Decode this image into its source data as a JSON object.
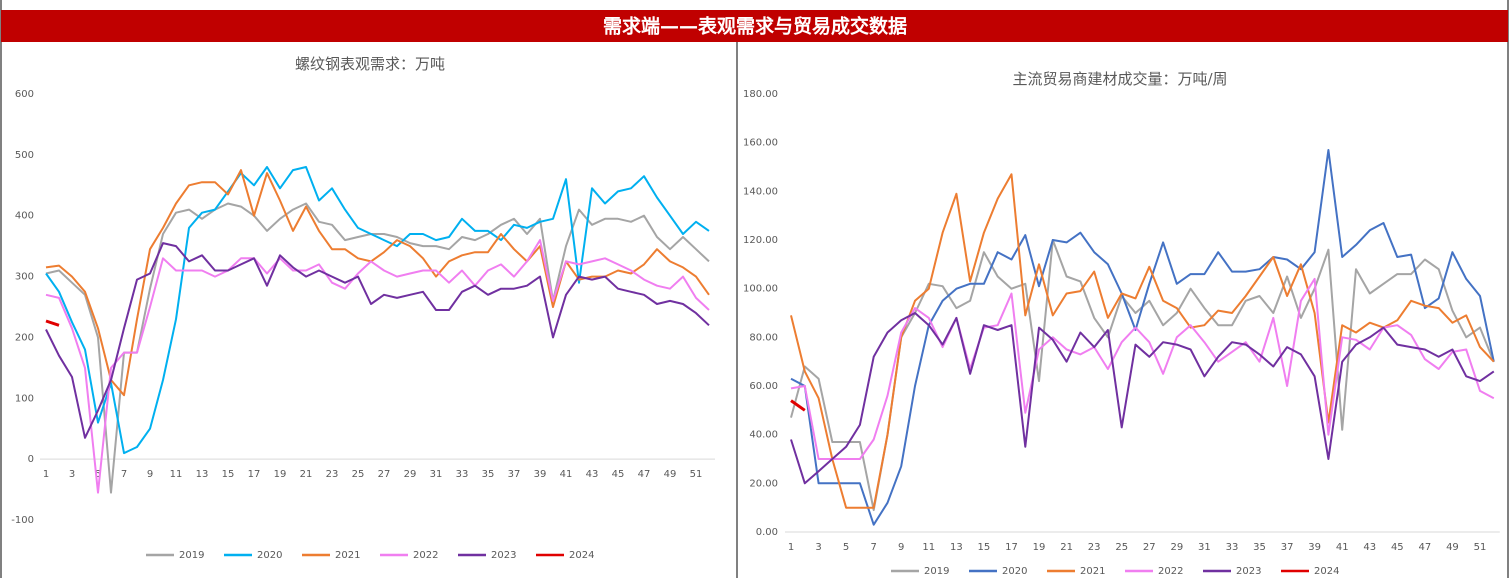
{
  "header": {
    "title": "需求端——表观需求与贸易成交数据"
  },
  "chart_data": [
    {
      "type": "line",
      "title": "螺纹钢表观需求：万吨",
      "categories": [
        "1",
        null,
        "3",
        null,
        "5",
        null,
        "7",
        null,
        "9",
        null,
        "11",
        null,
        "13",
        null,
        "15",
        null,
        "17",
        null,
        "19",
        null,
        "21",
        null,
        "23",
        null,
        "25",
        null,
        "27",
        null,
        "29",
        null,
        "31",
        null,
        "33",
        null,
        "35",
        null,
        "37",
        null,
        "39",
        null,
        "41",
        null,
        "43",
        null,
        "45",
        null,
        "47",
        null,
        "49",
        null,
        "51",
        null
      ],
      "ylim": [
        -100,
        600
      ],
      "yticks": [
        -100,
        0,
        100,
        200,
        300,
        400,
        500,
        600
      ],
      "grid": false,
      "legend": "bottom",
      "series": [
        {
          "name": "2019",
          "color": "#a5a5a5",
          "values": [
            305,
            310,
            290,
            270,
            200,
            -55,
            175,
            175,
            280,
            370,
            405,
            410,
            395,
            410,
            420,
            415,
            400,
            375,
            395,
            410,
            420,
            390,
            385,
            360,
            365,
            370,
            370,
            365,
            355,
            350,
            350,
            345,
            365,
            360,
            370,
            385,
            395,
            370,
            395,
            260,
            350,
            410,
            385,
            395,
            395,
            390,
            400,
            365,
            345,
            365,
            345,
            325
          ]
        },
        {
          "name": "2020",
          "color": "#00b0f0",
          "values": [
            305,
            275,
            225,
            180,
            60,
            125,
            10,
            20,
            50,
            130,
            230,
            380,
            405,
            410,
            440,
            470,
            450,
            480,
            445,
            475,
            480,
            425,
            445,
            410,
            380,
            370,
            360,
            350,
            370,
            370,
            360,
            365,
            395,
            375,
            375,
            360,
            385,
            380,
            390,
            395,
            460,
            290,
            445,
            420,
            440,
            445,
            465,
            430,
            400,
            370,
            390,
            375
          ]
        },
        {
          "name": "2021",
          "color": "#ed7d31",
          "values": [
            315,
            318,
            300,
            275,
            215,
            130,
            105,
            230,
            345,
            380,
            420,
            450,
            455,
            455,
            435,
            475,
            400,
            470,
            425,
            375,
            415,
            375,
            345,
            345,
            330,
            325,
            340,
            360,
            350,
            330,
            300,
            325,
            335,
            340,
            340,
            370,
            345,
            325,
            350,
            250,
            325,
            295,
            300,
            300,
            310,
            305,
            320,
            345,
            325,
            315,
            300,
            270
          ]
        },
        {
          "name": "2022",
          "color": "#f07ef0",
          "values": [
            270,
            265,
            215,
            150,
            -55,
            150,
            175,
            175,
            250,
            330,
            310,
            310,
            310,
            300,
            310,
            330,
            330,
            305,
            330,
            310,
            310,
            320,
            290,
            280,
            305,
            325,
            310,
            300,
            305,
            310,
            310,
            290,
            310,
            285,
            310,
            320,
            300,
            325,
            360,
            260,
            325,
            320,
            325,
            330,
            320,
            310,
            295,
            285,
            280,
            300,
            265,
            245
          ]
        },
        {
          "name": "2023",
          "color": "#7030a0",
          "values": [
            213,
            170,
            135,
            35,
            80,
            130,
            215,
            295,
            305,
            355,
            350,
            325,
            335,
            310,
            310,
            320,
            330,
            285,
            335,
            315,
            300,
            310,
            300,
            290,
            300,
            255,
            270,
            265,
            270,
            275,
            245,
            245,
            275,
            285,
            270,
            280,
            280,
            285,
            300,
            200,
            270,
            300,
            295,
            300,
            280,
            275,
            270,
            255,
            260,
            255,
            240,
            220
          ]
        },
        {
          "name": "2024",
          "color": "#e00000",
          "values": [
            227,
            220,
            null,
            null,
            null,
            null,
            null,
            null,
            null,
            null,
            null,
            null,
            null,
            null,
            null,
            null,
            null,
            null,
            null,
            null,
            null,
            null,
            null,
            null,
            null,
            null,
            null,
            null,
            null,
            null,
            null,
            null,
            null,
            null,
            null,
            null,
            null,
            null,
            null,
            null,
            null,
            null,
            null,
            null,
            null,
            null,
            null,
            null,
            null,
            null,
            null,
            null
          ]
        }
      ]
    },
    {
      "type": "line",
      "title": "主流贸易商建材成交量：万吨/周",
      "categories": [
        "1",
        null,
        "3",
        null,
        "5",
        null,
        "7",
        null,
        "9",
        null,
        "11",
        null,
        "13",
        null,
        "15",
        null,
        "17",
        null,
        "19",
        null,
        "21",
        null,
        "23",
        null,
        "25",
        null,
        "27",
        null,
        "29",
        null,
        "31",
        null,
        "33",
        null,
        "35",
        null,
        "37",
        null,
        "39",
        null,
        "41",
        null,
        "43",
        null,
        "45",
        null,
        "47",
        null,
        "49",
        null,
        "51",
        null
      ],
      "ylim": [
        0,
        180
      ],
      "yticks": [
        {
          "value": 0,
          "label": "0.00"
        },
        {
          "value": 20,
          "label": "20.00"
        },
        {
          "value": 40,
          "label": "40.00"
        },
        {
          "value": 60,
          "label": "60.00"
        },
        {
          "value": 80,
          "label": "80.00"
        },
        {
          "value": 100,
          "label": "100.00"
        },
        {
          "value": 120,
          "label": "120.00"
        },
        {
          "value": 140,
          "label": "140.00"
        },
        {
          "value": 160,
          "label": "160.00"
        },
        {
          "value": 180,
          "label": "180.00"
        }
      ],
      "grid": false,
      "legend": "bottom",
      "series": [
        {
          "name": "2019",
          "color": "#a5a5a5",
          "values": [
            47,
            68,
            63,
            37,
            37,
            37,
            9,
            40,
            80,
            90,
            102,
            101,
            92,
            95,
            115,
            105,
            100,
            102,
            62,
            120,
            105,
            103,
            88,
            80,
            97,
            90,
            95,
            85,
            90,
            100,
            92,
            85,
            85,
            95,
            97,
            90,
            105,
            88,
            100,
            116,
            42,
            108,
            98,
            102,
            106,
            106,
            112,
            108,
            91,
            80,
            84,
            70
          ]
        },
        {
          "name": "2020",
          "color": "#4472c4",
          "values": [
            63,
            60,
            20,
            20,
            20,
            20,
            3,
            12,
            27,
            60,
            85,
            95,
            100,
            102,
            102,
            115,
            112,
            122,
            101,
            120,
            119,
            123,
            115,
            110,
            98,
            83,
            102,
            119,
            102,
            106,
            106,
            115,
            107,
            107,
            108,
            113,
            112,
            108,
            115,
            157,
            113,
            118,
            124,
            127,
            113,
            114,
            92,
            96,
            115,
            104,
            97,
            70
          ]
        },
        {
          "name": "2021",
          "color": "#ed7d31",
          "values": [
            89,
            66,
            55,
            30,
            10,
            10,
            10,
            40,
            80,
            95,
            100,
            123,
            139,
            103,
            123,
            137,
            147,
            89,
            110,
            89,
            98,
            99,
            107,
            88,
            98,
            96,
            109,
            95,
            92,
            84,
            85,
            91,
            90,
            97,
            105,
            113,
            97,
            110,
            90,
            45,
            85,
            82,
            86,
            84,
            87,
            95,
            93,
            92,
            86,
            89,
            76,
            70
          ]
        },
        {
          "name": "2022",
          "color": "#f07ef0",
          "values": [
            59,
            60,
            30,
            30,
            30,
            30,
            38,
            56,
            82,
            92,
            88,
            76,
            88,
            67,
            84,
            85,
            98,
            49,
            75,
            80,
            75,
            73,
            76,
            67,
            78,
            84,
            78,
            65,
            80,
            85,
            78,
            70,
            74,
            78,
            70,
            88,
            60,
            95,
            104,
            40,
            80,
            79,
            75,
            84,
            85,
            81,
            71,
            67,
            74,
            75,
            58,
            55
          ]
        },
        {
          "name": "2023",
          "color": "#7030a0",
          "values": [
            38,
            20,
            25,
            30,
            35,
            44,
            72,
            82,
            87,
            90,
            85,
            77,
            88,
            65,
            85,
            83,
            85,
            35,
            84,
            79,
            70,
            82,
            76,
            83,
            43,
            77,
            72,
            78,
            77,
            75,
            64,
            72,
            78,
            77,
            73,
            68,
            76,
            73,
            64,
            30,
            70,
            77,
            80,
            84,
            77,
            76,
            75,
            72,
            75,
            64,
            62,
            66
          ]
        },
        {
          "name": "2024",
          "color": "#e00000",
          "values": [
            54,
            50,
            null,
            null,
            null,
            null,
            null,
            null,
            null,
            null,
            null,
            null,
            null,
            null,
            null,
            null,
            null,
            null,
            null,
            null,
            null,
            null,
            null,
            null,
            null,
            null,
            null,
            null,
            null,
            null,
            null,
            null,
            null,
            null,
            null,
            null,
            null,
            null,
            null,
            null,
            null,
            null,
            null,
            null,
            null,
            null,
            null,
            null,
            null,
            null,
            null,
            null
          ]
        }
      ]
    }
  ]
}
